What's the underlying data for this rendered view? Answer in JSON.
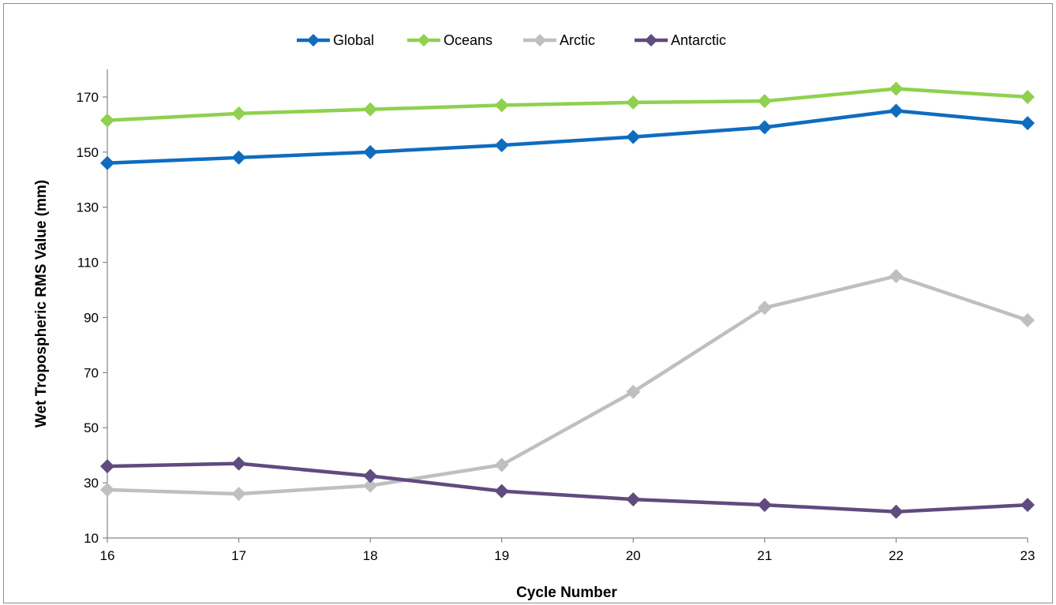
{
  "chart_data": {
    "type": "line",
    "title": "",
    "xlabel": "Cycle Number",
    "ylabel": "Wet Tropospheric RMS Value (mm)",
    "x": [
      16,
      17,
      18,
      19,
      20,
      21,
      22,
      23
    ],
    "xlim": [
      16,
      23
    ],
    "ylim": [
      10,
      180
    ],
    "yticks": [
      10,
      30,
      50,
      70,
      90,
      110,
      130,
      150,
      170
    ],
    "grid": false,
    "legend_position": "top",
    "series": [
      {
        "name": "Global",
        "color": "#0f6cbf",
        "values": [
          146,
          148,
          150,
          152.5,
          155.5,
          159,
          165,
          160.5
        ]
      },
      {
        "name": "Oceans",
        "color": "#8fd14f",
        "values": [
          161.5,
          164,
          165.5,
          167,
          168,
          168.5,
          173,
          170
        ]
      },
      {
        "name": "Arctic",
        "color": "#bfbfbf",
        "values": [
          27.5,
          26,
          29,
          36.5,
          63,
          93.5,
          105,
          89
        ]
      },
      {
        "name": "Antarctic",
        "color": "#5f4b7e",
        "values": [
          36,
          37,
          32.5,
          27,
          24,
          22,
          19.5,
          22
        ]
      }
    ]
  }
}
